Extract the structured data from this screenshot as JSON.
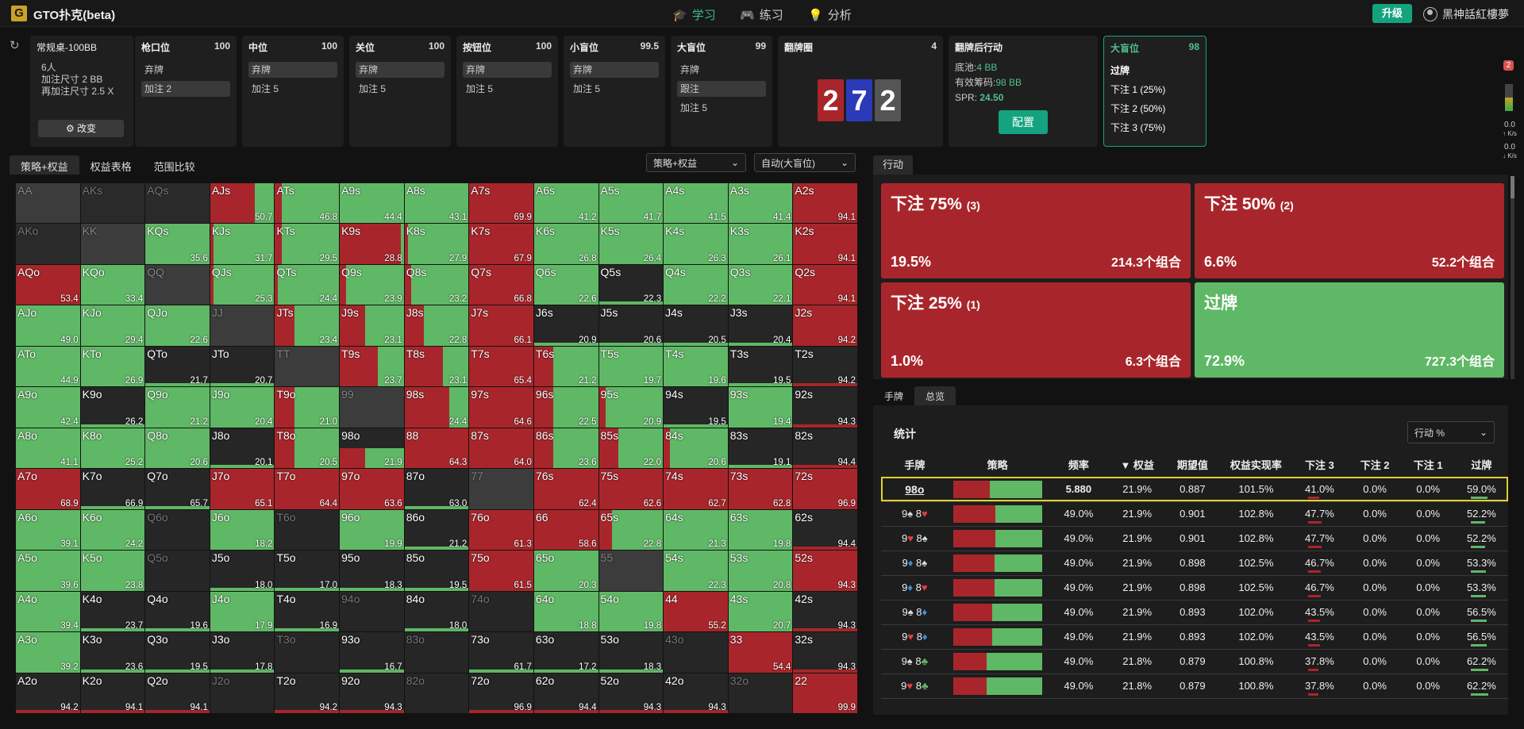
{
  "app": {
    "title": "GTO扑克(beta)",
    "logo": "G",
    "nav": [
      "学习",
      "练习",
      "分析"
    ],
    "upgrade": "升级",
    "user": "黑神話紅樓夢"
  },
  "table_info": {
    "name": "常规桌-100BB",
    "players": "6人",
    "raise1": "加注尺寸 2 BB",
    "raise2": "再加注尺寸 2.5 X",
    "change": "改变"
  },
  "positions": [
    {
      "name": "枪口位",
      "stack": "100",
      "actions": [
        "弃牌",
        "加注 2"
      ],
      "sel": 1
    },
    {
      "name": "中位",
      "stack": "100",
      "actions": [
        "弃牌",
        "加注 5"
      ],
      "sel": 0
    },
    {
      "name": "关位",
      "stack": "100",
      "actions": [
        "弃牌",
        "加注 5"
      ],
      "sel": 0
    },
    {
      "name": "按钮位",
      "stack": "100",
      "actions": [
        "弃牌",
        "加注 5"
      ],
      "sel": 0
    },
    {
      "name": "小盲位",
      "stack": "99.5",
      "actions": [
        "弃牌",
        "加注 5"
      ],
      "sel": 0
    },
    {
      "name": "大盲位",
      "stack": "99",
      "actions": [
        "弃牌",
        "跟注",
        "加注 5"
      ],
      "sel": 1
    }
  ],
  "flop": {
    "title": "翻牌圈",
    "count": "4",
    "cards": [
      "2",
      "7",
      "2"
    ]
  },
  "postflop": {
    "title": "翻牌后行动",
    "pot_label": "底池:",
    "pot": "4 BB",
    "eff_label": "有效筹码:",
    "eff": "98 BB",
    "spr_label": "SPR:",
    "spr": "24.50",
    "config": "配置"
  },
  "bb_panel": {
    "name": "大盲位",
    "stack": "98",
    "actions": [
      "过牌",
      "下注 1 (25%)",
      "下注 2 (50%)",
      "下注 3 (75%)"
    ]
  },
  "side": {
    "badge": "2",
    "s1": "0.0",
    "s1u": "↑ K/s",
    "s2": "0.0",
    "s2u": "↓ K/s"
  },
  "left_tabs": [
    "策略+权益",
    "权益表格",
    "范围比较"
  ],
  "selects": {
    "mode": "策略+权益",
    "pos": "自动(大盲位)"
  },
  "action_tab": "行动",
  "action_boxes": [
    {
      "title": "下注 75%",
      "size": "(3)",
      "freq": "19.5%",
      "combos": "214.3个组合",
      "color": "#a8262b"
    },
    {
      "title": "下注 50%",
      "size": "(2)",
      "freq": "6.6%",
      "combos": "52.2个组合",
      "color": "#a8262b"
    },
    {
      "title": "下注 25%",
      "size": "(1)",
      "freq": "1.0%",
      "combos": "6.3个组合",
      "color": "#a8262b"
    },
    {
      "title": "过牌",
      "size": "",
      "freq": "72.9%",
      "combos": "727.3个组合",
      "color": "#5fb865"
    }
  ],
  "bottom_tabs": [
    "手牌",
    "总览"
  ],
  "stats": {
    "title": "统计",
    "select": "行动 %",
    "headers": [
      "手牌",
      "策略",
      "频率",
      "▼ 权益",
      "期望值",
      "权益实现率",
      "下注 3",
      "下注 2",
      "下注 1",
      "过牌"
    ],
    "rows": [
      {
        "hand": "98o",
        "red": 41,
        "freq": "5.880",
        "eq": "21.9%",
        "ev": "0.887",
        "eqr": "101.5%",
        "b3": "41.0%",
        "b2": "0.0%",
        "b1": "0.0%",
        "ck": "59.0%"
      },
      {
        "c1": "9",
        "s1": "♠",
        "c2": "8",
        "s2": "♥",
        "red": 48,
        "freq": "49.0%",
        "eq": "21.9%",
        "ev": "0.901",
        "eqr": "102.8%",
        "b3": "47.7%",
        "b2": "0.0%",
        "b1": "0.0%",
        "ck": "52.2%"
      },
      {
        "c1": "9",
        "s1": "♥",
        "c2": "8",
        "s2": "♠",
        "red": 48,
        "freq": "49.0%",
        "eq": "21.9%",
        "ev": "0.901",
        "eqr": "102.8%",
        "b3": "47.7%",
        "b2": "0.0%",
        "b1": "0.0%",
        "ck": "52.2%"
      },
      {
        "c1": "9",
        "s1": "♦",
        "c2": "8",
        "s2": "♠",
        "red": 47,
        "freq": "49.0%",
        "eq": "21.9%",
        "ev": "0.898",
        "eqr": "102.5%",
        "b3": "46.7%",
        "b2": "0.0%",
        "b1": "0.0%",
        "ck": "53.3%"
      },
      {
        "c1": "9",
        "s1": "♦",
        "c2": "8",
        "s2": "♥",
        "red": 47,
        "freq": "49.0%",
        "eq": "21.9%",
        "ev": "0.898",
        "eqr": "102.5%",
        "b3": "46.7%",
        "b2": "0.0%",
        "b1": "0.0%",
        "ck": "53.3%"
      },
      {
        "c1": "9",
        "s1": "♠",
        "c2": "8",
        "s2": "♦",
        "red": 44,
        "freq": "49.0%",
        "eq": "21.9%",
        "ev": "0.893",
        "eqr": "102.0%",
        "b3": "43.5%",
        "b2": "0.0%",
        "b1": "0.0%",
        "ck": "56.5%"
      },
      {
        "c1": "9",
        "s1": "♥",
        "c2": "8",
        "s2": "♦",
        "red": 44,
        "freq": "49.0%",
        "eq": "21.9%",
        "ev": "0.893",
        "eqr": "102.0%",
        "b3": "43.5%",
        "b2": "0.0%",
        "b1": "0.0%",
        "ck": "56.5%"
      },
      {
        "c1": "9",
        "s1": "♠",
        "c2": "8",
        "s2": "♣",
        "red": 38,
        "freq": "49.0%",
        "eq": "21.8%",
        "ev": "0.879",
        "eqr": "100.8%",
        "b3": "37.8%",
        "b2": "0.0%",
        "b1": "0.0%",
        "ck": "62.2%"
      },
      {
        "c1": "9",
        "s1": "♥",
        "c2": "8",
        "s2": "♣",
        "red": 38,
        "freq": "49.0%",
        "eq": "21.8%",
        "ev": "0.879",
        "eqr": "100.8%",
        "b3": "37.8%",
        "b2": "0.0%",
        "b1": "0.0%",
        "ck": "62.2%"
      }
    ]
  },
  "grid": [
    [
      "AA",
      "g",
      0,
      ""
    ],
    [
      "AKs",
      "d",
      0,
      ""
    ],
    [
      "AQs",
      "d",
      0,
      ""
    ],
    [
      "AJs",
      "m",
      70,
      "50.7"
    ],
    [
      "ATs",
      "m",
      10,
      "46.8"
    ],
    [
      "A9s",
      "m",
      0,
      "44.4"
    ],
    [
      "A8s",
      "m",
      0,
      "43.1"
    ],
    [
      "A7s",
      "r",
      100,
      "69.9"
    ],
    [
      "A6s",
      "m",
      0,
      "41.2"
    ],
    [
      "A5s",
      "m",
      0,
      "41.7"
    ],
    [
      "A4s",
      "m",
      0,
      "41.5"
    ],
    [
      "A3s",
      "m",
      0,
      "41.4"
    ],
    [
      "A2s",
      "r",
      100,
      "94.1"
    ],
    [
      "AKo",
      "d",
      0,
      ""
    ],
    [
      "KK",
      "g",
      0,
      ""
    ],
    [
      "KQs",
      "m",
      0,
      "35.6"
    ],
    [
      "KJs",
      "m",
      5,
      "31.7"
    ],
    [
      "KTs",
      "m",
      10,
      "29.5"
    ],
    [
      "K9s",
      "r",
      95,
      "28.8"
    ],
    [
      "K8s",
      "m",
      5,
      "27.9"
    ],
    [
      "K7s",
      "r",
      100,
      "67.9"
    ],
    [
      "K6s",
      "m",
      0,
      "26.8"
    ],
    [
      "K5s",
      "m",
      0,
      "26.4"
    ],
    [
      "K4s",
      "m",
      0,
      "26.3"
    ],
    [
      "K3s",
      "m",
      0,
      "26.1"
    ],
    [
      "K2s",
      "r",
      100,
      "94.1"
    ],
    [
      "AQo",
      "r",
      100,
      "53.4"
    ],
    [
      "KQo",
      "m",
      0,
      "33.4"
    ],
    [
      "QQ",
      "g",
      0,
      ""
    ],
    [
      "QJs",
      "m",
      5,
      "25.3"
    ],
    [
      "QTs",
      "m",
      5,
      "24.4"
    ],
    [
      "Q9s",
      "m",
      10,
      "23.9"
    ],
    [
      "Q8s",
      "m",
      10,
      "23.2"
    ],
    [
      "Q7s",
      "r",
      100,
      "66.8"
    ],
    [
      "Q6s",
      "m",
      0,
      "22.6"
    ],
    [
      "Q5s",
      "k",
      0,
      "22.3"
    ],
    [
      "Q4s",
      "m",
      0,
      "22.2"
    ],
    [
      "Q3s",
      "m",
      0,
      "22.1"
    ],
    [
      "Q2s",
      "r",
      100,
      "94.1"
    ],
    [
      "AJo",
      "m",
      0,
      "49.0"
    ],
    [
      "KJo",
      "m",
      0,
      "29.4"
    ],
    [
      "QJo",
      "m",
      0,
      "22.6"
    ],
    [
      "JJ",
      "g",
      0,
      ""
    ],
    [
      "JTs",
      "m",
      30,
      "23.4"
    ],
    [
      "J9s",
      "m",
      40,
      "23.1"
    ],
    [
      "J8s",
      "m",
      30,
      "22.8"
    ],
    [
      "J7s",
      "r",
      100,
      "66.1"
    ],
    [
      "J6s",
      "k",
      0,
      "20.9"
    ],
    [
      "J5s",
      "k",
      0,
      "20.6"
    ],
    [
      "J4s",
      "k",
      0,
      "20.5"
    ],
    [
      "J3s",
      "k",
      0,
      "20.4"
    ],
    [
      "J2s",
      "r",
      100,
      "94.2"
    ],
    [
      "ATo",
      "m",
      0,
      "44.9"
    ],
    [
      "KTo",
      "m",
      0,
      "26.9"
    ],
    [
      "QTo",
      "k",
      0,
      "21.7"
    ],
    [
      "JTo",
      "k",
      0,
      "20.7"
    ],
    [
      "TT",
      "g",
      0,
      ""
    ],
    [
      "T9s",
      "r",
      60,
      "23.7"
    ],
    [
      "T8s",
      "r",
      60,
      "23.1"
    ],
    [
      "T7s",
      "r",
      100,
      "65.4"
    ],
    [
      "T6s",
      "m",
      30,
      "21.2"
    ],
    [
      "T5s",
      "m",
      0,
      "19.7"
    ],
    [
      "T4s",
      "m",
      0,
      "19.6"
    ],
    [
      "T3s",
      "k",
      0,
      "19.5"
    ],
    [
      "T2s",
      "k",
      0,
      "94.2"
    ],
    [
      "A9o",
      "m",
      0,
      "42.4"
    ],
    [
      "K9o",
      "k",
      0,
      "26.2"
    ],
    [
      "Q9o",
      "m",
      0,
      "21.2"
    ],
    [
      "J9o",
      "m",
      0,
      "20.4"
    ],
    [
      "T9o",
      "m",
      30,
      "21.0"
    ],
    [
      "99",
      "g",
      0,
      ""
    ],
    [
      "98s",
      "r",
      70,
      "24.4"
    ],
    [
      "97s",
      "r",
      100,
      "64.6"
    ],
    [
      "96s",
      "m",
      30,
      "22.5"
    ],
    [
      "95s",
      "m",
      10,
      "20.9"
    ],
    [
      "94s",
      "k",
      0,
      "19.5"
    ],
    [
      "93s",
      "m",
      0,
      "19.4"
    ],
    [
      "92s",
      "k",
      0,
      "94.3"
    ],
    [
      "A8o",
      "m",
      0,
      "41.1"
    ],
    [
      "K8o",
      "m",
      0,
      "25.2"
    ],
    [
      "Q8o",
      "m",
      0,
      "20.6"
    ],
    [
      "J8o",
      "k",
      0,
      "20.1"
    ],
    [
      "T8o",
      "m",
      30,
      "20.5"
    ],
    [
      "98o",
      "hl",
      40,
      "21.9"
    ],
    [
      "88",
      "r",
      100,
      "64.3"
    ],
    [
      "87s",
      "r",
      100,
      "64.0"
    ],
    [
      "86s",
      "m",
      30,
      "23.6"
    ],
    [
      "85s",
      "m",
      30,
      "22.0"
    ],
    [
      "84s",
      "m",
      10,
      "20.6"
    ],
    [
      "83s",
      "k",
      0,
      "19.1"
    ],
    [
      "82s",
      "k",
      0,
      "94.4"
    ],
    [
      "A7o",
      "r",
      100,
      "68.9"
    ],
    [
      "K7o",
      "k",
      0,
      "66.9"
    ],
    [
      "Q7o",
      "k",
      0,
      "65.7"
    ],
    [
      "J7o",
      "r",
      100,
      "65.1"
    ],
    [
      "T7o",
      "r",
      100,
      "64.4"
    ],
    [
      "97o",
      "r",
      100,
      "63.6"
    ],
    [
      "87o",
      "k",
      0,
      "63.0"
    ],
    [
      "77",
      "g",
      0,
      ""
    ],
    [
      "76s",
      "r",
      100,
      "62.4"
    ],
    [
      "75s",
      "r",
      100,
      "62.6"
    ],
    [
      "74s",
      "r",
      100,
      "62.7"
    ],
    [
      "73s",
      "r",
      100,
      "62.8"
    ],
    [
      "72s",
      "r",
      100,
      "96.9"
    ],
    [
      "A6o",
      "m",
      0,
      "39.1"
    ],
    [
      "K6o",
      "m",
      0,
      "24.2"
    ],
    [
      "Q6o",
      "dim",
      0,
      ""
    ],
    [
      "J6o",
      "m",
      0,
      "18.2"
    ],
    [
      "T6o",
      "dim",
      0,
      ""
    ],
    [
      "96o",
      "m",
      0,
      "19.9"
    ],
    [
      "86o",
      "k",
      0,
      "21.2"
    ],
    [
      "76o",
      "r",
      100,
      "61.3"
    ],
    [
      "66",
      "r",
      100,
      "58.6"
    ],
    [
      "65s",
      "m",
      20,
      "22.8"
    ],
    [
      "64s",
      "m",
      0,
      "21.3"
    ],
    [
      "63s",
      "m",
      0,
      "19.8"
    ],
    [
      "62s",
      "k",
      0,
      "94.4"
    ],
    [
      "A5o",
      "m",
      0,
      "39.6"
    ],
    [
      "K5o",
      "m",
      0,
      "23.8"
    ],
    [
      "Q5o",
      "dim",
      0,
      ""
    ],
    [
      "J5o",
      "k",
      0,
      "18.0"
    ],
    [
      "T5o",
      "k",
      0,
      "17.0"
    ],
    [
      "95o",
      "k",
      0,
      "18.3"
    ],
    [
      "85o",
      "k",
      0,
      "19.5"
    ],
    [
      "75o",
      "r",
      100,
      "61.5"
    ],
    [
      "65o",
      "m",
      0,
      "20.3"
    ],
    [
      "55",
      "g",
      0,
      ""
    ],
    [
      "54s",
      "m",
      0,
      "22.3"
    ],
    [
      "53s",
      "m",
      0,
      "20.8"
    ],
    [
      "52s",
      "r",
      100,
      "94.3"
    ],
    [
      "A4o",
      "m",
      0,
      "39.4"
    ],
    [
      "K4o",
      "k",
      0,
      "23.7"
    ],
    [
      "Q4o",
      "k",
      0,
      "19.6"
    ],
    [
      "J4o",
      "m",
      0,
      "17.9"
    ],
    [
      "T4o",
      "k",
      0,
      "16.9"
    ],
    [
      "94o",
      "dim",
      0,
      ""
    ],
    [
      "84o",
      "k",
      0,
      "18.0"
    ],
    [
      "74o",
      "dim",
      0,
      ""
    ],
    [
      "64o",
      "m",
      0,
      "18.8"
    ],
    [
      "54o",
      "m",
      0,
      "19.8"
    ],
    [
      "44",
      "r",
      100,
      "55.2"
    ],
    [
      "43s",
      "m",
      0,
      "20.7"
    ],
    [
      "42s",
      "k",
      0,
      "94.3"
    ],
    [
      "A3o",
      "m",
      0,
      "39.2"
    ],
    [
      "K3o",
      "k",
      0,
      "23.6"
    ],
    [
      "Q3o",
      "k",
      0,
      "19.5"
    ],
    [
      "J3o",
      "k",
      0,
      "17.8"
    ],
    [
      "T3o",
      "dim",
      0,
      ""
    ],
    [
      "93o",
      "k",
      0,
      "16.7"
    ],
    [
      "83o",
      "dim",
      0,
      ""
    ],
    [
      "73o",
      "k",
      0,
      "61.7"
    ],
    [
      "63o",
      "k",
      0,
      "17.2"
    ],
    [
      "53o",
      "k",
      0,
      "18.3"
    ],
    [
      "43o",
      "dim",
      0,
      ""
    ],
    [
      "33",
      "r",
      100,
      "54.4"
    ],
    [
      "32s",
      "k",
      0,
      "94.3"
    ],
    [
      "A2o",
      "k",
      0,
      "94.2"
    ],
    [
      "K2o",
      "k",
      0,
      "94.1"
    ],
    [
      "Q2o",
      "k",
      0,
      "94.1"
    ],
    [
      "J2o",
      "dim",
      0,
      ""
    ],
    [
      "T2o",
      "k",
      0,
      "94.2"
    ],
    [
      "92o",
      "k",
      0,
      "94.3"
    ],
    [
      "82o",
      "dim",
      0,
      ""
    ],
    [
      "72o",
      "k",
      0,
      "96.9"
    ],
    [
      "62o",
      "k",
      0,
      "94.4"
    ],
    [
      "52o",
      "k",
      0,
      "94.3"
    ],
    [
      "42o",
      "k",
      0,
      "94.3"
    ],
    [
      "32o",
      "dim",
      0,
      ""
    ],
    [
      "22",
      "r",
      100,
      "99.9"
    ]
  ]
}
